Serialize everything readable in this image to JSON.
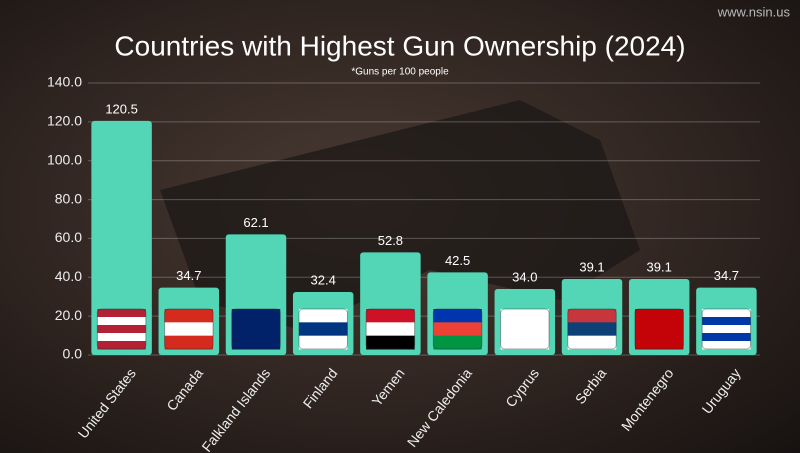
{
  "chart_data": {
    "type": "bar",
    "title": "Countries with Highest Gun Ownership (2024)",
    "subtitle": "*Guns per 100 people",
    "watermark": "www.nsin.us",
    "categories": [
      "United States",
      "Canada",
      "Falkland Islands",
      "Finland",
      "Yemen",
      "New Caledonia",
      "Cyprus",
      "Serbia",
      "Montenegro",
      "Uruguay"
    ],
    "values": [
      120.5,
      34.7,
      62.1,
      32.4,
      52.8,
      42.5,
      34,
      39.1,
      39.1,
      34.7
    ],
    "value_labels": [
      "120.5",
      "34.7",
      "62.1",
      "32.4",
      "52.8",
      "42.5",
      "34.0",
      "39.1",
      "39.1",
      "34.7"
    ],
    "color": "#52d6b5",
    "ylim": [
      0,
      140
    ],
    "yticks": [
      {
        "value": 0,
        "label": "0.0"
      },
      {
        "value": 20,
        "label": "20.0"
      },
      {
        "value": 40,
        "label": "40.0"
      },
      {
        "value": 60,
        "label": "60.0"
      },
      {
        "value": 80,
        "label": "80.0"
      },
      {
        "value": 100,
        "label": "100.0"
      },
      {
        "value": 120,
        "label": "120.0"
      },
      {
        "value": 140,
        "label": "140.0"
      }
    ],
    "grid": true
  }
}
